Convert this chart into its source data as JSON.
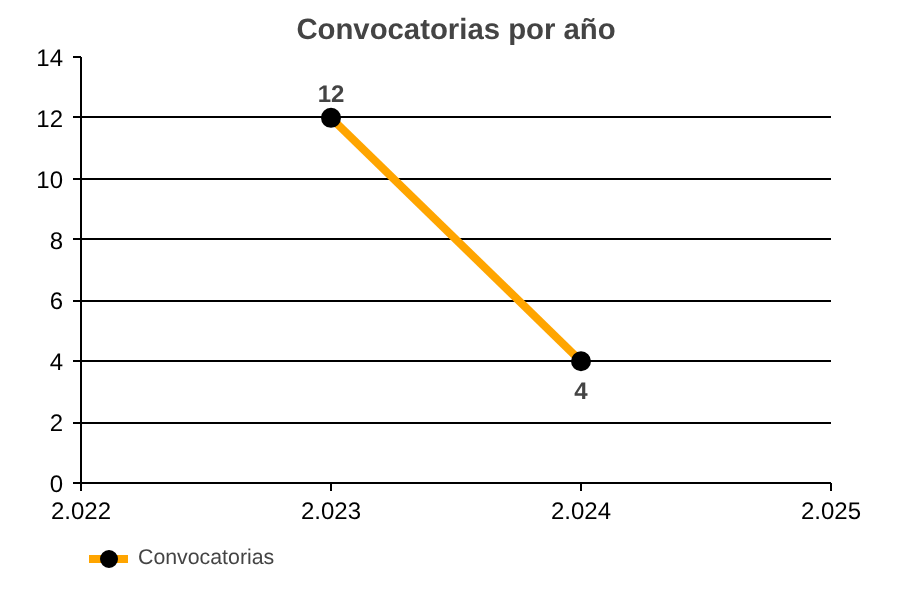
{
  "chart_data": {
    "type": "line",
    "title": "Convocatorias por año",
    "x": [
      2023,
      2024
    ],
    "series": [
      {
        "name": "Convocatorias",
        "color": "#ffa500",
        "values": [
          12,
          4
        ]
      }
    ],
    "xlim": [
      2022,
      2025
    ],
    "xticks": [
      {
        "value": 2022,
        "label": "2.022"
      },
      {
        "value": 2023,
        "label": "2.023"
      },
      {
        "value": 2024,
        "label": "2.024"
      },
      {
        "value": 2025,
        "label": "2.025"
      }
    ],
    "ylim": [
      0,
      14
    ],
    "yticks": [
      0,
      2,
      4,
      6,
      8,
      10,
      12,
      14
    ],
    "grid": "y",
    "legend": "bottom left",
    "marker": "circle",
    "line_style": "solid",
    "data_labels": true
  }
}
